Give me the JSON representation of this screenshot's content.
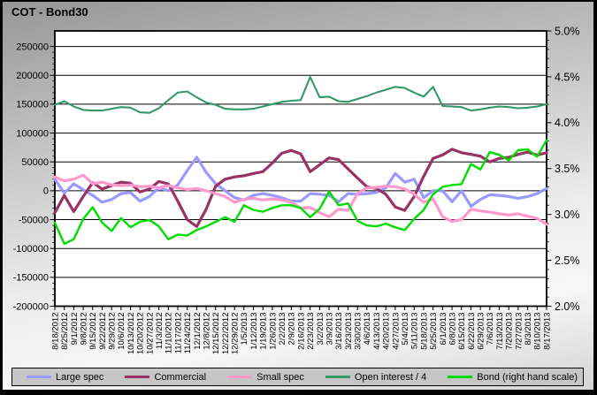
{
  "window": {
    "title": "COT - Bond30"
  },
  "chart_data": {
    "type": "line",
    "title": "COT - Bond30",
    "grid": true,
    "legend_position": "bottom",
    "left_axis": {
      "min": -200000,
      "max": 250000,
      "tick_step": 50000,
      "minor_tick_step": 10000,
      "tick_labels": [
        "250000",
        "200000",
        "150000",
        "100000",
        "50000",
        "0",
        "-50000",
        "-100000",
        "-150000",
        "-200000"
      ]
    },
    "right_axis": {
      "min": 2.0,
      "max": 5.0,
      "tick_step": 0.5,
      "minor_tick_step": 0.1,
      "tick_labels": [
        "5.0%",
        "4.5%",
        "4.0%",
        "3.5%",
        "3.0%",
        "2.5%",
        "2.0%"
      ]
    },
    "x_labels": [
      "8/18/2012",
      "8/25/2012",
      "9/1/2012",
      "9/8/2012",
      "9/15/2012",
      "9/22/2012",
      "9/29/2012",
      "10/6/2012",
      "10/13/2012",
      "10/20/2012",
      "10/27/2012",
      "11/3/2012",
      "11/10/2012",
      "11/17/2012",
      "11/24/2012",
      "12/1/2012",
      "12/8/2012",
      "12/15/2012",
      "12/22/2012",
      "12/29/2012",
      "1/5/2013",
      "1/12/2013",
      "1/19/2013",
      "1/26/2013",
      "2/2/2013",
      "2/9/2013",
      "2/16/2013",
      "2/23/2013",
      "3/2/2013",
      "3/9/2013",
      "3/16/2013",
      "3/23/2013",
      "3/30/2013",
      "4/6/2013",
      "4/13/2013",
      "4/20/2013",
      "4/27/2013",
      "5/4/2013",
      "5/11/2013",
      "5/18/2013",
      "5/25/2013",
      "6/1/2013",
      "6/8/2013",
      "6/15/2013",
      "6/22/2013",
      "6/29/2013",
      "7/6/2013",
      "7/13/2013",
      "7/20/2013",
      "7/27/2013",
      "8/3/2013",
      "8/10/2013",
      "8/17/2013"
    ],
    "series": [
      {
        "name": "Large spec",
        "color": "#9999FF",
        "axis": "left",
        "values": [
          20000,
          -4000,
          12000,
          2000,
          -8000,
          -20000,
          -15000,
          -5000,
          -3000,
          -18000,
          -10000,
          5000,
          0,
          10000,
          35000,
          58000,
          32000,
          12000,
          0,
          -12000,
          -16000,
          -8000,
          -5000,
          -8000,
          -12000,
          -18000,
          -18000,
          -5000,
          -6000,
          -8000,
          -19000,
          -5000,
          -6000,
          -5000,
          -3000,
          5000,
          30000,
          15000,
          20000,
          -12000,
          0,
          0,
          -19000,
          0,
          -27000,
          -15000,
          -7000,
          -8000,
          -10000,
          -13000,
          -10000,
          -5000,
          4000
        ]
      },
      {
        "name": "Commercial",
        "color": "#993366",
        "axis": "left",
        "values": [
          -38000,
          -8000,
          -36000,
          -10000,
          14000,
          3000,
          9000,
          15000,
          13000,
          -2000,
          3000,
          16000,
          12000,
          -18000,
          -50000,
          -62000,
          -32000,
          8000,
          20000,
          24000,
          26000,
          30000,
          33000,
          48000,
          65000,
          70000,
          64000,
          33000,
          45000,
          57000,
          54000,
          38000,
          22000,
          7000,
          4000,
          -6000,
          -28000,
          -34000,
          -10000,
          25000,
          56000,
          62000,
          72000,
          66000,
          63000,
          60000,
          50000,
          56000,
          58000,
          63000,
          67000,
          62000,
          66000
        ]
      },
      {
        "name": "Small spec",
        "color": "#FF99CC",
        "axis": "left",
        "values": [
          24000,
          17000,
          20000,
          27000,
          12000,
          15000,
          10000,
          9000,
          10000,
          7000,
          8000,
          5000,
          9000,
          5000,
          2000,
          4000,
          0,
          -5000,
          -10000,
          -20000,
          -15000,
          -13000,
          -16000,
          -14000,
          -16000,
          -20000,
          -30000,
          -29000,
          -38000,
          -45000,
          -32000,
          -34000,
          -5000,
          5000,
          6000,
          8000,
          7000,
          3000,
          -6000,
          -20000,
          -14000,
          -45000,
          -53000,
          -50000,
          -32000,
          -35000,
          -37000,
          -40000,
          -42000,
          -40000,
          -44000,
          -48000,
          -58000
        ]
      },
      {
        "name": "Open interest / 4",
        "color": "#339966",
        "axis": "left",
        "values": [
          149000,
          155000,
          146000,
          140000,
          139000,
          139000,
          142000,
          145000,
          144000,
          136000,
          135000,
          143000,
          157000,
          170000,
          172000,
          162000,
          153000,
          149000,
          142000,
          141000,
          141000,
          142000,
          146000,
          150000,
          154000,
          156000,
          157000,
          197000,
          162000,
          163000,
          155000,
          154000,
          159000,
          164000,
          170000,
          175000,
          180000,
          178000,
          170000,
          163000,
          180000,
          147000,
          146000,
          145000,
          139000,
          141000,
          144000,
          146000,
          145000,
          143000,
          144000,
          146000,
          150000
        ]
      },
      {
        "name": "Bond (right hand scale)",
        "color": "#00DD00",
        "axis": "right",
        "values": [
          2.91,
          2.68,
          2.73,
          2.95,
          3.08,
          2.91,
          2.82,
          2.96,
          2.86,
          2.92,
          2.94,
          2.87,
          2.73,
          2.78,
          2.77,
          2.83,
          2.87,
          2.92,
          2.97,
          2.92,
          3.1,
          3.05,
          3.03,
          3.07,
          3.1,
          3.1,
          3.07,
          2.97,
          3.06,
          3.25,
          3.1,
          3.12,
          2.93,
          2.88,
          2.87,
          2.9,
          2.86,
          2.83,
          2.95,
          3.05,
          3.22,
          3.3,
          3.32,
          3.33,
          3.55,
          3.49,
          3.68,
          3.65,
          3.59,
          3.7,
          3.71,
          3.63,
          3.81
        ]
      }
    ]
  }
}
